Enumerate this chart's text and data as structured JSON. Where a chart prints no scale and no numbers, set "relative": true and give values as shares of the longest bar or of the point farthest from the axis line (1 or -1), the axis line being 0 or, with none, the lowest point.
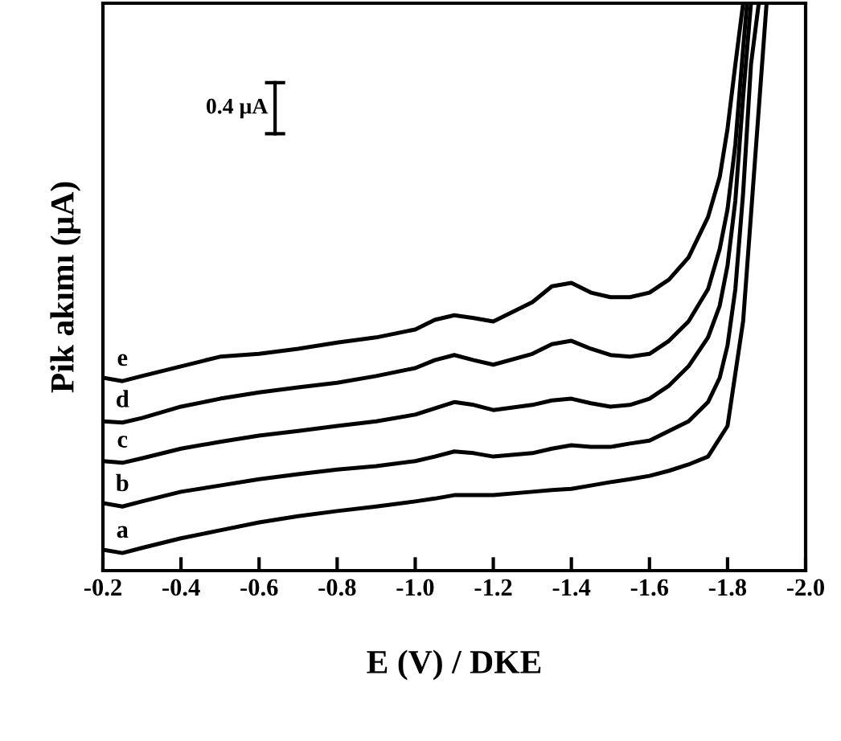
{
  "chart_data": {
    "type": "line",
    "relative": true,
    "xlabel": "E (V) / DKE",
    "ylabel": "Pik akımı (μA)",
    "xlim": [
      -0.2,
      -2.0
    ],
    "xticks": [
      {
        "value": -0.2,
        "label": "-0.2"
      },
      {
        "value": -0.4,
        "label": "-0.4"
      },
      {
        "value": -0.6,
        "label": "-0.6"
      },
      {
        "value": -0.8,
        "label": "-0.8"
      },
      {
        "value": -1.0,
        "label": "-1.0"
      },
      {
        "value": -1.2,
        "label": "-1.2"
      },
      {
        "value": -1.4,
        "label": "-1.4"
      },
      {
        "value": -1.6,
        "label": "-1.6"
      },
      {
        "value": -1.8,
        "label": "-1.8"
      },
      {
        "value": -2.0,
        "label": "-2.0"
      }
    ],
    "tick_labels": "x",
    "grid": false,
    "legend": false,
    "marker": "none",
    "line_style": "solid",
    "annotations": [
      "0.4 μA"
    ],
    "series": [
      {
        "name": "a",
        "color": "#000000",
        "x": [
          -0.2,
          -0.25,
          -0.3,
          -0.4,
          -0.5,
          -0.6,
          -0.7,
          -0.8,
          -0.9,
          -1.0,
          -1.05,
          -1.1,
          -1.15,
          -1.2,
          -1.3,
          -1.35,
          -1.4,
          -1.45,
          -1.5,
          -1.55,
          -1.6,
          -1.65,
          -1.7,
          -1.75,
          -1.8,
          -1.84,
          -1.87,
          -1.9
        ],
        "values": [
          0.037,
          0.031,
          0.04,
          0.057,
          0.071,
          0.085,
          0.096,
          0.105,
          0.113,
          0.122,
          0.127,
          0.133,
          0.133,
          0.133,
          0.139,
          0.142,
          0.144,
          0.15,
          0.156,
          0.161,
          0.167,
          0.176,
          0.187,
          0.201,
          0.255,
          0.44,
          0.72,
          1.0
        ]
      },
      {
        "name": "b",
        "color": "#000000",
        "x": [
          -0.2,
          -0.25,
          -0.3,
          -0.4,
          -0.5,
          -0.6,
          -0.7,
          -0.8,
          -0.9,
          -1.0,
          -1.05,
          -1.1,
          -1.15,
          -1.2,
          -1.3,
          -1.35,
          -1.4,
          -1.45,
          -1.5,
          -1.55,
          -1.6,
          -1.65,
          -1.7,
          -1.75,
          -1.78,
          -1.8,
          -1.82,
          -1.84,
          -1.86,
          -1.88
        ],
        "values": [
          0.119,
          0.113,
          0.122,
          0.139,
          0.15,
          0.161,
          0.17,
          0.178,
          0.184,
          0.193,
          0.201,
          0.21,
          0.207,
          0.201,
          0.207,
          0.215,
          0.221,
          0.218,
          0.218,
          0.224,
          0.229,
          0.246,
          0.263,
          0.297,
          0.34,
          0.397,
          0.496,
          0.666,
          0.892,
          1.0
        ]
      },
      {
        "name": "c",
        "color": "#000000",
        "x": [
          -0.2,
          -0.25,
          -0.3,
          -0.4,
          -0.5,
          -0.6,
          -0.7,
          -0.8,
          -0.9,
          -1.0,
          -1.05,
          -1.1,
          -1.15,
          -1.2,
          -1.3,
          -1.35,
          -1.4,
          -1.45,
          -1.5,
          -1.55,
          -1.6,
          -1.65,
          -1.7,
          -1.75,
          -1.78,
          -1.8,
          -1.82,
          -1.84,
          -1.86
        ],
        "values": [
          0.193,
          0.19,
          0.198,
          0.215,
          0.227,
          0.238,
          0.246,
          0.255,
          0.263,
          0.275,
          0.286,
          0.297,
          0.292,
          0.283,
          0.292,
          0.3,
          0.303,
          0.295,
          0.289,
          0.292,
          0.303,
          0.326,
          0.36,
          0.411,
          0.467,
          0.538,
          0.652,
          0.836,
          1.0
        ]
      },
      {
        "name": "d",
        "color": "#000000",
        "x": [
          -0.2,
          -0.25,
          -0.3,
          -0.4,
          -0.5,
          -0.6,
          -0.7,
          -0.8,
          -0.9,
          -1.0,
          -1.05,
          -1.1,
          -1.15,
          -1.2,
          -1.3,
          -1.35,
          -1.4,
          -1.45,
          -1.5,
          -1.55,
          -1.6,
          -1.65,
          -1.7,
          -1.75,
          -1.78,
          -1.8,
          -1.82,
          -1.84,
          -1.85
        ],
        "values": [
          0.263,
          0.261,
          0.269,
          0.289,
          0.303,
          0.314,
          0.323,
          0.331,
          0.343,
          0.357,
          0.371,
          0.38,
          0.371,
          0.363,
          0.382,
          0.399,
          0.405,
          0.391,
          0.38,
          0.377,
          0.382,
          0.405,
          0.439,
          0.496,
          0.567,
          0.637,
          0.751,
          0.921,
          1.0
        ]
      },
      {
        "name": "e",
        "color": "#000000",
        "x": [
          -0.2,
          -0.25,
          -0.3,
          -0.4,
          -0.5,
          -0.6,
          -0.7,
          -0.8,
          -0.9,
          -1.0,
          -1.05,
          -1.1,
          -1.15,
          -1.2,
          -1.3,
          -1.35,
          -1.4,
          -1.45,
          -1.5,
          -1.55,
          -1.6,
          -1.65,
          -1.7,
          -1.75,
          -1.78,
          -1.8,
          -1.82,
          -1.84
        ],
        "values": [
          0.34,
          0.334,
          0.343,
          0.36,
          0.377,
          0.382,
          0.391,
          0.402,
          0.411,
          0.425,
          0.442,
          0.45,
          0.445,
          0.439,
          0.473,
          0.501,
          0.507,
          0.49,
          0.482,
          0.482,
          0.49,
          0.513,
          0.552,
          0.623,
          0.694,
          0.779,
          0.892,
          1.0
        ]
      }
    ]
  }
}
